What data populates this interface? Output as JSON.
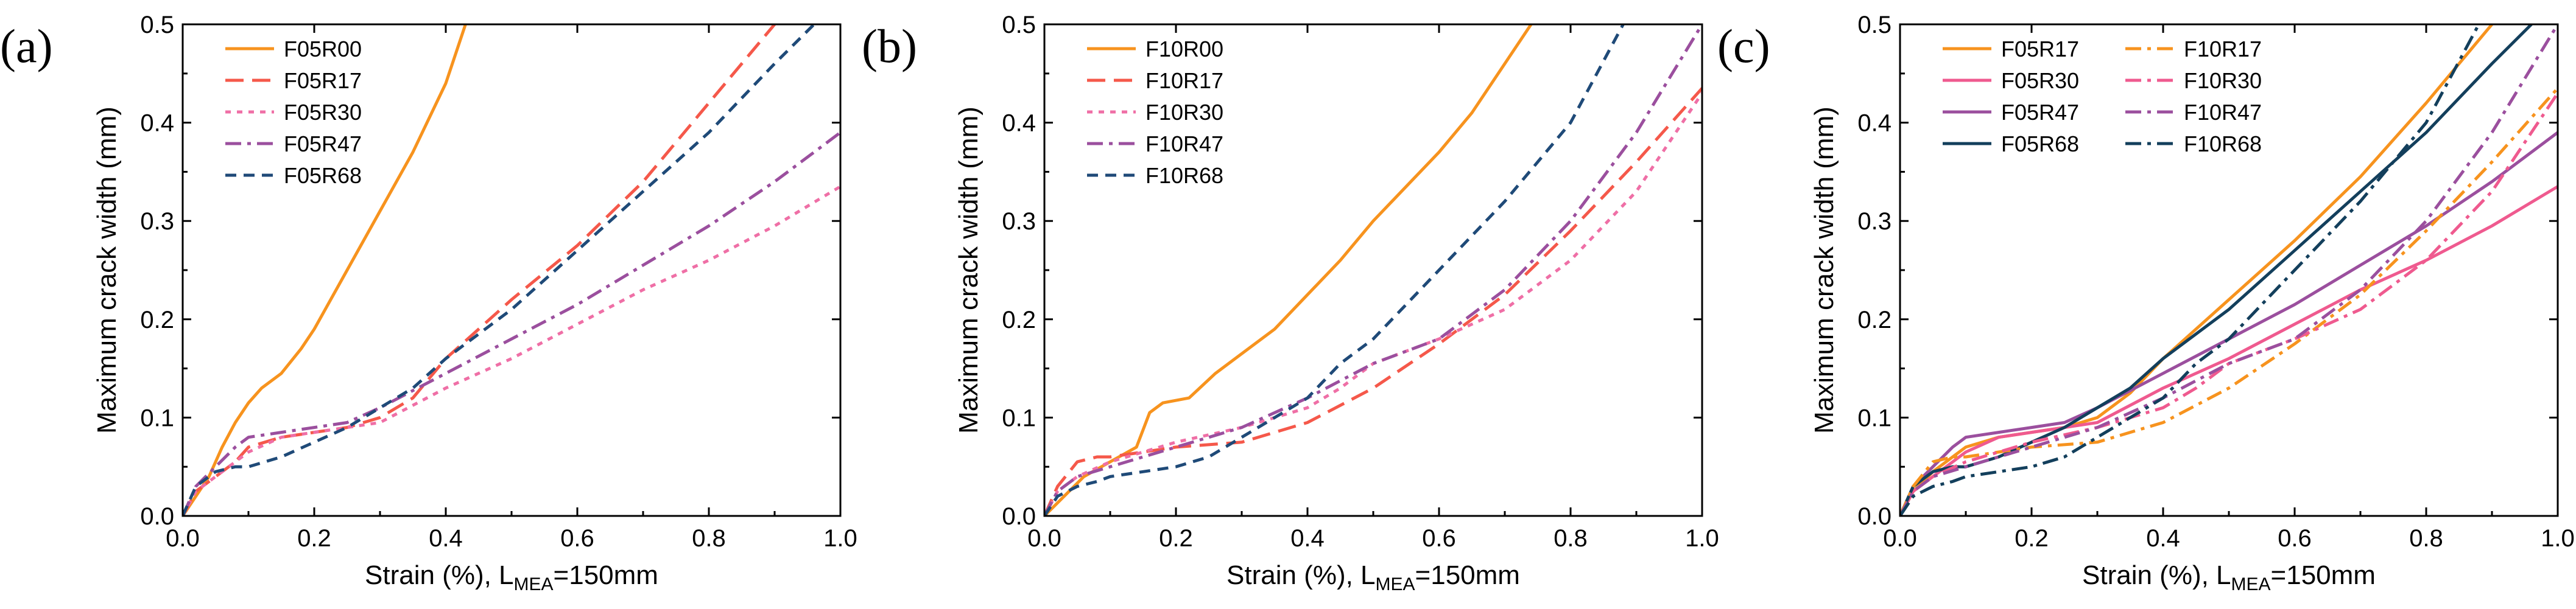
{
  "chart_data": [
    {
      "type": "line",
      "panel_label": "(a)",
      "xlabel": {
        "main": "Strain (%), L",
        "sub": "MEA",
        "tail": "=150mm"
      },
      "ylabel": "Maximum crack width (mm)",
      "xlim": [
        0,
        1.0
      ],
      "ylim": [
        0,
        0.5
      ],
      "xticks": [
        0.0,
        0.2,
        0.4,
        0.6,
        0.8,
        1.0
      ],
      "xtick_labels": [
        "0.0",
        "0.2",
        "0.4",
        "0.6",
        "0.8",
        "1.0"
      ],
      "yticks": [
        0.0,
        0.1,
        0.2,
        0.3,
        0.4,
        0.5
      ],
      "ytick_labels": [
        "0.0",
        "0.1",
        "0.2",
        "0.3",
        "0.4",
        "0.5"
      ],
      "legend_position": "top-left",
      "legend_columns": 1,
      "series": [
        {
          "name": "F05R00",
          "color": "#f7931e",
          "dash": "solid",
          "x": [
            0,
            0.02,
            0.04,
            0.06,
            0.08,
            0.1,
            0.12,
            0.15,
            0.18,
            0.2,
            0.25,
            0.3,
            0.35,
            0.4,
            0.43
          ],
          "y": [
            0,
            0.02,
            0.04,
            0.07,
            0.095,
            0.115,
            0.13,
            0.145,
            0.17,
            0.19,
            0.25,
            0.31,
            0.37,
            0.44,
            0.5
          ]
        },
        {
          "name": "F05R17",
          "color": "#f5584a",
          "dash": "long",
          "x": [
            0,
            0.02,
            0.05,
            0.08,
            0.1,
            0.15,
            0.2,
            0.25,
            0.3,
            0.35,
            0.4,
            0.5,
            0.6,
            0.7,
            0.8,
            0.9
          ],
          "y": [
            0,
            0.025,
            0.04,
            0.055,
            0.07,
            0.08,
            0.085,
            0.09,
            0.1,
            0.12,
            0.16,
            0.22,
            0.275,
            0.34,
            0.42,
            0.5
          ]
        },
        {
          "name": "F05R30",
          "color": "#ef6fa6",
          "dash": "short",
          "x": [
            0,
            0.02,
            0.05,
            0.1,
            0.15,
            0.2,
            0.25,
            0.3,
            0.4,
            0.5,
            0.6,
            0.7,
            0.8,
            0.9,
            1.0
          ],
          "y": [
            0,
            0.025,
            0.04,
            0.065,
            0.08,
            0.085,
            0.09,
            0.095,
            0.13,
            0.16,
            0.195,
            0.23,
            0.26,
            0.295,
            0.335
          ]
        },
        {
          "name": "F05R47",
          "color": "#9b4f9e",
          "dash": "dashdot",
          "x": [
            0,
            0.02,
            0.05,
            0.08,
            0.1,
            0.15,
            0.2,
            0.25,
            0.3,
            0.4,
            0.5,
            0.6,
            0.7,
            0.8,
            0.9,
            1.0
          ],
          "y": [
            0,
            0.03,
            0.05,
            0.07,
            0.08,
            0.085,
            0.09,
            0.095,
            0.11,
            0.145,
            0.18,
            0.215,
            0.255,
            0.295,
            0.34,
            0.39
          ]
        },
        {
          "name": "F05R68",
          "color": "#1f4a78",
          "dash": "medium",
          "x": [
            0,
            0.02,
            0.05,
            0.08,
            0.1,
            0.15,
            0.2,
            0.25,
            0.3,
            0.35,
            0.4,
            0.5,
            0.6,
            0.7,
            0.8,
            0.9,
            0.96
          ],
          "y": [
            0,
            0.03,
            0.045,
            0.05,
            0.05,
            0.06,
            0.075,
            0.09,
            0.11,
            0.13,
            0.16,
            0.21,
            0.27,
            0.33,
            0.39,
            0.46,
            0.5
          ]
        }
      ]
    },
    {
      "type": "line",
      "panel_label": "(b)",
      "xlabel": {
        "main": "Strain (%), L",
        "sub": "MEA",
        "tail": "=150mm"
      },
      "ylabel": "Maximum crack width (mm)",
      "xlim": [
        0,
        1.0
      ],
      "ylim": [
        0,
        0.5
      ],
      "xticks": [
        0.0,
        0.2,
        0.4,
        0.6,
        0.8,
        1.0
      ],
      "xtick_labels": [
        "0.0",
        "0.2",
        "0.4",
        "0.6",
        "0.8",
        "1.0"
      ],
      "yticks": [
        0.0,
        0.1,
        0.2,
        0.3,
        0.4,
        0.5
      ],
      "ytick_labels": [
        "0.0",
        "0.1",
        "0.2",
        "0.3",
        "0.4",
        "0.5"
      ],
      "legend_position": "top-left",
      "legend_columns": 1,
      "series": [
        {
          "name": "F10R00",
          "color": "#f7931e",
          "dash": "solid",
          "x": [
            0,
            0.03,
            0.06,
            0.1,
            0.14,
            0.16,
            0.18,
            0.22,
            0.26,
            0.3,
            0.35,
            0.4,
            0.45,
            0.5,
            0.55,
            0.6,
            0.65,
            0.7,
            0.74
          ],
          "y": [
            0,
            0.02,
            0.04,
            0.055,
            0.07,
            0.105,
            0.115,
            0.12,
            0.145,
            0.165,
            0.19,
            0.225,
            0.26,
            0.3,
            0.335,
            0.37,
            0.41,
            0.46,
            0.5
          ]
        },
        {
          "name": "F10R17",
          "color": "#f5584a",
          "dash": "long",
          "x": [
            0,
            0.02,
            0.05,
            0.08,
            0.1,
            0.15,
            0.2,
            0.3,
            0.4,
            0.5,
            0.6,
            0.7,
            0.8,
            0.9,
            1.0
          ],
          "y": [
            0,
            0.03,
            0.055,
            0.06,
            0.06,
            0.065,
            0.07,
            0.075,
            0.095,
            0.13,
            0.175,
            0.225,
            0.29,
            0.36,
            0.435
          ]
        },
        {
          "name": "F10R30",
          "color": "#ef6fa6",
          "dash": "short",
          "x": [
            0,
            0.02,
            0.05,
            0.1,
            0.15,
            0.2,
            0.3,
            0.4,
            0.45,
            0.5,
            0.6,
            0.7,
            0.8,
            0.9,
            1.0
          ],
          "y": [
            0,
            0.025,
            0.04,
            0.055,
            0.065,
            0.075,
            0.09,
            0.11,
            0.13,
            0.155,
            0.18,
            0.21,
            0.26,
            0.33,
            0.43
          ]
        },
        {
          "name": "F10R47",
          "color": "#9b4f9e",
          "dash": "dashdot",
          "x": [
            0,
            0.02,
            0.05,
            0.1,
            0.15,
            0.2,
            0.3,
            0.4,
            0.5,
            0.6,
            0.7,
            0.8,
            0.9,
            1.0
          ],
          "y": [
            0,
            0.025,
            0.04,
            0.05,
            0.06,
            0.07,
            0.09,
            0.12,
            0.155,
            0.18,
            0.23,
            0.3,
            0.39,
            0.5
          ]
        },
        {
          "name": "F10R68",
          "color": "#1f4a78",
          "dash": "medium",
          "x": [
            0,
            0.02,
            0.05,
            0.08,
            0.1,
            0.15,
            0.2,
            0.25,
            0.3,
            0.35,
            0.4,
            0.45,
            0.5,
            0.6,
            0.7,
            0.8,
            0.88
          ],
          "y": [
            0,
            0.02,
            0.03,
            0.035,
            0.04,
            0.045,
            0.05,
            0.06,
            0.08,
            0.1,
            0.12,
            0.155,
            0.18,
            0.25,
            0.32,
            0.4,
            0.5
          ]
        }
      ]
    },
    {
      "type": "line",
      "panel_label": "(c)",
      "xlabel": {
        "main": "Strain (%), L",
        "sub": "MEA",
        "tail": "=150mm"
      },
      "ylabel": "Maximum crack width (mm)",
      "xlim": [
        0,
        1.0
      ],
      "ylim": [
        0,
        0.5
      ],
      "xticks": [
        0.0,
        0.2,
        0.4,
        0.6,
        0.8,
        1.0
      ],
      "xtick_labels": [
        "0.0",
        "0.2",
        "0.4",
        "0.6",
        "0.8",
        "1.0"
      ],
      "yticks": [
        0.0,
        0.1,
        0.2,
        0.3,
        0.4,
        0.5
      ],
      "ytick_labels": [
        "0.0",
        "0.1",
        "0.2",
        "0.3",
        "0.4",
        "0.5"
      ],
      "legend_position": "top-left",
      "legend_columns": 2,
      "series": [
        {
          "name": "F05R17",
          "color": "#f7931e",
          "dash": "solid",
          "x": [
            0,
            0.02,
            0.05,
            0.08,
            0.1,
            0.15,
            0.2,
            0.25,
            0.3,
            0.35,
            0.4,
            0.5,
            0.6,
            0.7,
            0.8,
            0.9
          ],
          "y": [
            0,
            0.025,
            0.045,
            0.06,
            0.07,
            0.08,
            0.085,
            0.09,
            0.1,
            0.125,
            0.16,
            0.22,
            0.28,
            0.345,
            0.42,
            0.5
          ]
        },
        {
          "name": "F05R30",
          "color": "#ef5a8f",
          "dash": "solid",
          "x": [
            0,
            0.02,
            0.05,
            0.1,
            0.15,
            0.2,
            0.25,
            0.3,
            0.4,
            0.5,
            0.6,
            0.7,
            0.8,
            0.9,
            1.0
          ],
          "y": [
            0,
            0.025,
            0.04,
            0.065,
            0.08,
            0.085,
            0.09,
            0.095,
            0.13,
            0.16,
            0.195,
            0.23,
            0.26,
            0.295,
            0.335
          ]
        },
        {
          "name": "F05R47",
          "color": "#9b4f9e",
          "dash": "solid",
          "x": [
            0,
            0.02,
            0.05,
            0.08,
            0.1,
            0.15,
            0.2,
            0.25,
            0.3,
            0.4,
            0.5,
            0.6,
            0.7,
            0.8,
            0.9,
            1.0
          ],
          "y": [
            0,
            0.03,
            0.05,
            0.07,
            0.08,
            0.085,
            0.09,
            0.095,
            0.11,
            0.145,
            0.18,
            0.215,
            0.255,
            0.295,
            0.34,
            0.39
          ]
        },
        {
          "name": "F05R68",
          "color": "#133f5c",
          "dash": "solid",
          "x": [
            0,
            0.02,
            0.05,
            0.08,
            0.1,
            0.15,
            0.2,
            0.25,
            0.3,
            0.35,
            0.4,
            0.5,
            0.6,
            0.7,
            0.8,
            0.9,
            0.96
          ],
          "y": [
            0,
            0.03,
            0.045,
            0.05,
            0.05,
            0.06,
            0.075,
            0.09,
            0.11,
            0.13,
            0.16,
            0.21,
            0.27,
            0.33,
            0.39,
            0.46,
            0.5
          ]
        },
        {
          "name": "F10R17",
          "color": "#f7931e",
          "dash": "dashdot",
          "x": [
            0,
            0.02,
            0.05,
            0.08,
            0.1,
            0.15,
            0.2,
            0.3,
            0.4,
            0.5,
            0.6,
            0.7,
            0.8,
            0.9,
            1.0
          ],
          "y": [
            0,
            0.03,
            0.055,
            0.06,
            0.06,
            0.065,
            0.07,
            0.075,
            0.095,
            0.13,
            0.175,
            0.225,
            0.29,
            0.36,
            0.435
          ]
        },
        {
          "name": "F10R30",
          "color": "#ef5a8f",
          "dash": "dashdot",
          "x": [
            0,
            0.02,
            0.05,
            0.1,
            0.15,
            0.2,
            0.3,
            0.4,
            0.45,
            0.5,
            0.6,
            0.7,
            0.8,
            0.9,
            1.0
          ],
          "y": [
            0,
            0.025,
            0.04,
            0.055,
            0.065,
            0.075,
            0.09,
            0.11,
            0.13,
            0.155,
            0.18,
            0.21,
            0.26,
            0.33,
            0.43
          ]
        },
        {
          "name": "F10R47",
          "color": "#9b4f9e",
          "dash": "dashdot",
          "x": [
            0,
            0.02,
            0.05,
            0.1,
            0.15,
            0.2,
            0.3,
            0.4,
            0.5,
            0.6,
            0.7,
            0.8,
            0.9,
            1.0
          ],
          "y": [
            0,
            0.025,
            0.04,
            0.05,
            0.06,
            0.07,
            0.09,
            0.12,
            0.155,
            0.18,
            0.23,
            0.3,
            0.39,
            0.5
          ]
        },
        {
          "name": "F10R68",
          "color": "#133f5c",
          "dash": "dashdot",
          "x": [
            0,
            0.02,
            0.05,
            0.08,
            0.1,
            0.15,
            0.2,
            0.25,
            0.3,
            0.35,
            0.4,
            0.45,
            0.5,
            0.6,
            0.7,
            0.8,
            0.88
          ],
          "y": [
            0,
            0.02,
            0.03,
            0.035,
            0.04,
            0.045,
            0.05,
            0.06,
            0.08,
            0.1,
            0.12,
            0.155,
            0.18,
            0.25,
            0.32,
            0.4,
            0.5
          ]
        }
      ]
    }
  ]
}
